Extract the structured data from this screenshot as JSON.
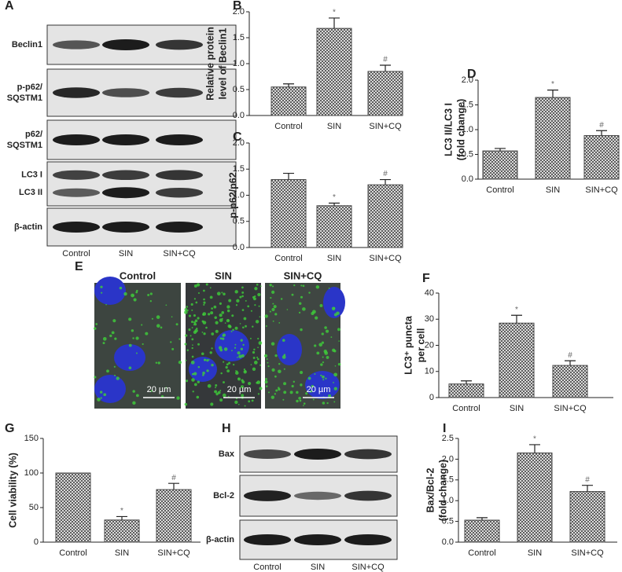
{
  "panel_labels": [
    "A",
    "B",
    "C",
    "D",
    "E",
    "F",
    "G",
    "H",
    "I"
  ],
  "blots": [
    {
      "rows": [
        [
          "Beclin1"
        ],
        [
          "p-p62/",
          "SQSTM1"
        ],
        [
          "p62/",
          "SQSTM1"
        ],
        [
          "LC3 I",
          "LC3 II"
        ],
        [
          "β-actin"
        ]
      ],
      "lanes": [
        "Control",
        "SIN",
        "SIN+CQ"
      ]
    },
    {
      "rows": [
        [
          "Bax"
        ],
        [
          "Bcl-2"
        ],
        [
          "β-actin"
        ]
      ],
      "lanes": [
        "Control",
        "SIN",
        "SIN+CQ"
      ]
    }
  ],
  "micrographs": {
    "conditions": [
      "Control",
      "SIN",
      "SIN+CQ"
    ],
    "scale_bars": [
      "20 µm",
      "20 µm",
      "20 µm"
    ]
  },
  "chart_data": [
    {
      "type": "bar",
      "ylabel": [
        "Relative protein",
        "level of Beclin1"
      ],
      "categories": [
        "Control",
        "SIN",
        "SIN+CQ"
      ],
      "values": [
        0.55,
        1.68,
        0.85
      ],
      "errors": [
        0.06,
        0.2,
        0.12
      ],
      "annotations": [
        null,
        "*",
        "#"
      ],
      "color": "#444444",
      "ylim": [
        0,
        2
      ],
      "yticks": [
        {
          "value": 0,
          "label": "0.0"
        },
        0.5,
        {
          "value": 1,
          "label": "1.0"
        },
        1.5,
        {
          "value": 2,
          "label": "2.0"
        }
      ]
    },
    {
      "type": "bar",
      "ylabel": [
        "p-p62/p62"
      ],
      "categories": [
        "Control",
        "SIN",
        "SIN+CQ"
      ],
      "values": [
        1.3,
        0.8,
        1.2
      ],
      "errors": [
        0.12,
        0.05,
        0.1
      ],
      "annotations": [
        null,
        "*",
        "#"
      ],
      "color": "#444444",
      "ylim": [
        0,
        2
      ],
      "yticks": [
        {
          "value": 0,
          "label": "0.0"
        },
        0.5,
        {
          "value": 1,
          "label": "1.0"
        },
        1.5,
        {
          "value": 2,
          "label": "2.0"
        }
      ]
    },
    {
      "type": "bar",
      "ylabel": [
        "LC3 II/LC3 I",
        "(fold change)"
      ],
      "categories": [
        "Control",
        "SIN",
        "SIN+CQ"
      ],
      "values": [
        0.57,
        1.65,
        0.88
      ],
      "errors": [
        0.05,
        0.15,
        0.1
      ],
      "annotations": [
        null,
        "*",
        "#"
      ],
      "color": "#444444",
      "ylim": [
        0,
        2
      ],
      "yticks": [
        {
          "value": 0,
          "label": "0.0"
        },
        0.5,
        {
          "value": 1,
          "label": "1.0"
        },
        1.5,
        {
          "value": 2,
          "label": "2.0"
        }
      ]
    },
    {
      "type": "bar",
      "ylabel": [
        "LC3⁺ puncta",
        "per cell"
      ],
      "categories": [
        "Control",
        "SIN",
        "SIN+CQ"
      ],
      "values": [
        5.2,
        28.5,
        12.3
      ],
      "errors": [
        1.2,
        3,
        1.8
      ],
      "annotations": [
        null,
        "*",
        "#"
      ],
      "color": "#444444",
      "ylim": [
        0,
        40
      ],
      "yticks": [
        0,
        10,
        20,
        30,
        40
      ]
    },
    {
      "type": "bar",
      "ylabel": [
        "Cell viability (%)"
      ],
      "categories": [
        "Control",
        "SIN",
        "SIN+CQ"
      ],
      "values": [
        100,
        32,
        76
      ],
      "errors": [
        null,
        5,
        9
      ],
      "annotations": [
        null,
        "*",
        "#"
      ],
      "color": "#444444",
      "ylim": [
        0,
        150
      ],
      "yticks": [
        0,
        50,
        100,
        150
      ]
    },
    {
      "type": "bar",
      "ylabel": [
        "Bax/Bcl-2",
        "(fold change)"
      ],
      "categories": [
        "Control",
        "SIN",
        "SIN+CQ"
      ],
      "values": [
        0.53,
        2.15,
        1.22
      ],
      "errors": [
        0.06,
        0.2,
        0.15
      ],
      "annotations": [
        null,
        "*",
        "#"
      ],
      "color": "#444444",
      "ylim": [
        0,
        2.5
      ],
      "yticks": [
        {
          "value": 0,
          "label": "0.0"
        },
        0.5,
        {
          "value": 1,
          "label": "1.0"
        },
        1.5,
        {
          "value": 2,
          "label": "2.0"
        },
        2.5
      ]
    }
  ]
}
